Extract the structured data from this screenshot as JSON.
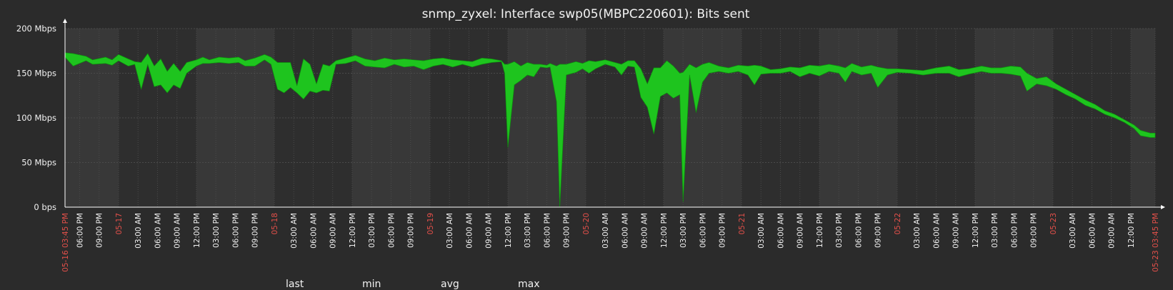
{
  "chart_data": {
    "type": "area",
    "title": "snmp_zyxel: Interface swp05(MBPC220601): Bits sent",
    "y_unit": "Mbps",
    "ylim": [
      0,
      200
    ],
    "y_ticks": [
      {
        "value": 0,
        "label": "0 bps"
      },
      {
        "value": 50,
        "label": "50 Mbps"
      },
      {
        "value": 100,
        "label": "100 Mbps"
      },
      {
        "value": 150,
        "label": "150 Mbps"
      },
      {
        "value": 200,
        "label": "200 Mbps"
      }
    ],
    "x_range": [
      "2024-05-16 15:45",
      "2024-05-23 15:45"
    ],
    "x_tick_labels": [
      {
        "t": "05-16 15:45",
        "label": "05-16 03:45 PM",
        "highlight": true
      },
      {
        "t": "05-16 18:00",
        "label": "06:00 PM"
      },
      {
        "t": "05-16 21:00",
        "label": "09:00 PM"
      },
      {
        "t": "05-17 00:00",
        "label": "05-17",
        "highlight": true
      },
      {
        "t": "05-17 03:00",
        "label": "03:00 AM"
      },
      {
        "t": "05-17 06:00",
        "label": "06:00 AM"
      },
      {
        "t": "05-17 09:00",
        "label": "09:00 AM"
      },
      {
        "t": "05-17 12:00",
        "label": "12:00 PM"
      },
      {
        "t": "05-17 15:00",
        "label": "03:00 PM"
      },
      {
        "t": "05-17 18:00",
        "label": "06:00 PM"
      },
      {
        "t": "05-17 21:00",
        "label": "09:00 PM"
      },
      {
        "t": "05-18 00:00",
        "label": "05-18",
        "highlight": true
      },
      {
        "t": "05-18 03:00",
        "label": "03:00 AM"
      },
      {
        "t": "05-18 06:00",
        "label": "06:00 AM"
      },
      {
        "t": "05-18 09:00",
        "label": "09:00 AM"
      },
      {
        "t": "05-18 12:00",
        "label": "12:00 PM"
      },
      {
        "t": "05-18 15:00",
        "label": "03:00 PM"
      },
      {
        "t": "05-18 18:00",
        "label": "06:00 PM"
      },
      {
        "t": "05-18 21:00",
        "label": "09:00 PM"
      },
      {
        "t": "05-19 00:00",
        "label": "05-19",
        "highlight": true
      },
      {
        "t": "05-19 03:00",
        "label": "03:00 AM"
      },
      {
        "t": "05-19 06:00",
        "label": "06:00 AM"
      },
      {
        "t": "05-19 09:00",
        "label": "09:00 AM"
      },
      {
        "t": "05-19 12:00",
        "label": "12:00 PM"
      },
      {
        "t": "05-19 15:00",
        "label": "03:00 PM"
      },
      {
        "t": "05-19 18:00",
        "label": "06:00 PM"
      },
      {
        "t": "05-19 21:00",
        "label": "09:00 PM"
      },
      {
        "t": "05-20 00:00",
        "label": "05-20",
        "highlight": true
      },
      {
        "t": "05-20 03:00",
        "label": "03:00 AM"
      },
      {
        "t": "05-20 06:00",
        "label": "06:00 AM"
      },
      {
        "t": "05-20 09:00",
        "label": "09:00 AM"
      },
      {
        "t": "05-20 12:00",
        "label": "12:00 PM"
      },
      {
        "t": "05-20 15:00",
        "label": "03:00 PM"
      },
      {
        "t": "05-20 18:00",
        "label": "06:00 PM"
      },
      {
        "t": "05-20 21:00",
        "label": "09:00 PM"
      },
      {
        "t": "05-21 00:00",
        "label": "05-21",
        "highlight": true
      },
      {
        "t": "05-21 03:00",
        "label": "03:00 AM"
      },
      {
        "t": "05-21 06:00",
        "label": "06:00 AM"
      },
      {
        "t": "05-21 09:00",
        "label": "09:00 AM"
      },
      {
        "t": "05-21 12:00",
        "label": "12:00 PM"
      },
      {
        "t": "05-21 15:00",
        "label": "03:00 PM"
      },
      {
        "t": "05-21 18:00",
        "label": "06:00 PM"
      },
      {
        "t": "05-21 21:00",
        "label": "09:00 PM"
      },
      {
        "t": "05-22 00:00",
        "label": "05-22",
        "highlight": true
      },
      {
        "t": "05-22 03:00",
        "label": "03:00 AM"
      },
      {
        "t": "05-22 06:00",
        "label": "06:00 AM"
      },
      {
        "t": "05-22 09:00",
        "label": "09:00 AM"
      },
      {
        "t": "05-22 12:00",
        "label": "12:00 PM"
      },
      {
        "t": "05-22 15:00",
        "label": "03:00 PM"
      },
      {
        "t": "05-22 18:00",
        "label": "06:00 PM"
      },
      {
        "t": "05-22 21:00",
        "label": "09:00 PM"
      },
      {
        "t": "05-23 00:00",
        "label": "05-23",
        "highlight": true
      },
      {
        "t": "05-23 03:00",
        "label": "03:00 AM"
      },
      {
        "t": "05-23 06:00",
        "label": "06:00 AM"
      },
      {
        "t": "05-23 09:00",
        "label": "09:00 AM"
      },
      {
        "t": "05-23 12:00",
        "label": "12:00 PM"
      },
      {
        "t": "05-23 15:45",
        "label": "05-23 03:45 PM",
        "highlight": true
      }
    ],
    "series": [
      {
        "color": "#1ec41e",
        "points": [
          [
            "05-16 15:45",
            168,
            173
          ],
          [
            "05-16 17:00",
            158,
            172
          ],
          [
            "05-16 19:00",
            164,
            169
          ],
          [
            "05-16 20:00",
            160,
            165
          ],
          [
            "05-16 22:00",
            161,
            168
          ],
          [
            "05-16 23:00",
            159,
            165
          ],
          [
            "05-17 00:00",
            164,
            171
          ],
          [
            "05-17 01:30",
            158,
            166
          ],
          [
            "05-17 02:30",
            160,
            163
          ],
          [
            "05-17 03:30",
            132,
            162
          ],
          [
            "05-17 04:30",
            160,
            172
          ],
          [
            "05-17 05:30",
            135,
            158
          ],
          [
            "05-17 06:30",
            137,
            166
          ],
          [
            "05-17 07:30",
            128,
            152
          ],
          [
            "05-17 08:30",
            137,
            161
          ],
          [
            "05-17 09:30",
            133,
            152
          ],
          [
            "05-17 10:30",
            150,
            162
          ],
          [
            "05-17 12:00",
            158,
            165
          ],
          [
            "05-17 13:00",
            161,
            168
          ],
          [
            "05-17 14:00",
            161,
            165
          ],
          [
            "05-17 15:30",
            162,
            168
          ],
          [
            "05-17 17:00",
            161,
            167
          ],
          [
            "05-17 18:30",
            162,
            168
          ],
          [
            "05-17 19:30",
            158,
            164
          ],
          [
            "05-17 21:00",
            158,
            167
          ],
          [
            "05-17 22:30",
            165,
            171
          ],
          [
            "05-17 23:30",
            160,
            168
          ],
          [
            "05-18 00:30",
            132,
            162
          ],
          [
            "05-18 01:30",
            128,
            162
          ],
          [
            "05-18 02:30",
            134,
            162
          ],
          [
            "05-18 03:30",
            128,
            136
          ],
          [
            "05-18 04:30",
            121,
            166
          ],
          [
            "05-18 05:30",
            130,
            160
          ],
          [
            "05-18 06:30",
            128,
            138
          ],
          [
            "05-18 07:30",
            131,
            160
          ],
          [
            "05-18 08:30",
            130,
            158
          ],
          [
            "05-18 09:30",
            160,
            164
          ],
          [
            "05-18 11:00",
            161,
            167
          ],
          [
            "05-18 12:30",
            164,
            170
          ],
          [
            "05-18 14:00",
            158,
            166
          ],
          [
            "05-18 15:30",
            157,
            164
          ],
          [
            "05-18 17:00",
            156,
            167
          ],
          [
            "05-18 18:30",
            160,
            165
          ],
          [
            "05-18 20:00",
            157,
            166
          ],
          [
            "05-18 21:30",
            158,
            165
          ],
          [
            "05-18 23:00",
            154,
            164
          ],
          [
            "05-19 00:30",
            158,
            166
          ],
          [
            "05-19 02:00",
            160,
            167
          ],
          [
            "05-19 03:30",
            157,
            165
          ],
          [
            "05-19 05:00",
            160,
            164
          ],
          [
            "05-19 06:30",
            157,
            163
          ],
          [
            "05-19 08:00",
            160,
            167
          ],
          [
            "05-19 09:30",
            162,
            166
          ],
          [
            "05-19 11:00",
            163,
            164
          ],
          [
            "05-19 11:30",
            150,
            160
          ],
          [
            "05-19 12:00",
            67,
            160
          ],
          [
            "05-19 13:00",
            137,
            163
          ],
          [
            "05-19 14:00",
            142,
            158
          ],
          [
            "05-19 15:00",
            148,
            162
          ],
          [
            "05-19 16:00",
            146,
            160
          ],
          [
            "05-19 17:00",
            157,
            160
          ],
          [
            "05-19 18:00",
            156,
            159
          ],
          [
            "05-19 18:30",
            157,
            161
          ],
          [
            "05-19 19:30",
            118,
            158
          ],
          [
            "05-19 20:00",
            0,
            160
          ],
          [
            "05-19 21:00",
            148,
            160
          ],
          [
            "05-19 22:30",
            151,
            163
          ],
          [
            "05-19 23:30",
            155,
            161
          ],
          [
            "05-20 00:30",
            150,
            164
          ],
          [
            "05-20 01:30",
            155,
            163
          ],
          [
            "05-20 03:00",
            160,
            165
          ],
          [
            "05-20 04:30",
            157,
            162
          ],
          [
            "05-20 05:30",
            148,
            160
          ],
          [
            "05-20 06:30",
            158,
            164
          ],
          [
            "05-20 07:30",
            157,
            164
          ],
          [
            "05-20 08:30",
            123,
            155
          ],
          [
            "05-20 09:30",
            112,
            138
          ],
          [
            "05-20 10:30",
            82,
            156
          ],
          [
            "05-20 11:30",
            124,
            156
          ],
          [
            "05-20 12:30",
            128,
            164
          ],
          [
            "05-20 13:30",
            122,
            158
          ],
          [
            "05-20 14:30",
            126,
            150
          ],
          [
            "05-20 15:00",
            6,
            151
          ],
          [
            "05-20 16:00",
            148,
            160
          ],
          [
            "05-20 17:00",
            106,
            156
          ],
          [
            "05-20 18:00",
            140,
            160
          ],
          [
            "05-20 19:00",
            150,
            162
          ],
          [
            "05-20 20:30",
            152,
            158
          ],
          [
            "05-20 22:00",
            150,
            156
          ],
          [
            "05-20 23:30",
            152,
            159
          ],
          [
            "05-21 01:00",
            148,
            158
          ],
          [
            "05-21 02:00",
            137,
            159
          ],
          [
            "05-21 03:00",
            149,
            158
          ],
          [
            "05-21 04:30",
            150,
            154
          ],
          [
            "05-21 06:00",
            150,
            155
          ],
          [
            "05-21 07:30",
            152,
            157
          ],
          [
            "05-21 09:00",
            146,
            156
          ],
          [
            "05-21 10:30",
            150,
            159
          ],
          [
            "05-21 12:00",
            147,
            158
          ],
          [
            "05-21 13:30",
            152,
            160
          ],
          [
            "05-21 15:00",
            150,
            158
          ],
          [
            "05-21 16:00",
            140,
            156
          ],
          [
            "05-21 17:00",
            152,
            161
          ],
          [
            "05-21 18:30",
            148,
            157
          ],
          [
            "05-21 20:00",
            150,
            159
          ],
          [
            "05-21 21:00",
            134,
            157
          ],
          [
            "05-21 22:30",
            148,
            155
          ],
          [
            "05-22 00:00",
            151,
            155
          ],
          [
            "05-22 02:00",
            150,
            154
          ],
          [
            "05-22 04:00",
            148,
            153
          ],
          [
            "05-22 06:00",
            150,
            156
          ],
          [
            "05-22 08:00",
            150,
            158
          ],
          [
            "05-22 09:30",
            146,
            154
          ],
          [
            "05-22 11:00",
            149,
            155
          ],
          [
            "05-22 13:00",
            152,
            158
          ],
          [
            "05-22 14:30",
            150,
            156
          ],
          [
            "05-22 16:00",
            150,
            156
          ],
          [
            "05-22 17:30",
            149,
            158
          ],
          [
            "05-22 19:00",
            147,
            157
          ],
          [
            "05-22 20:00",
            130,
            150
          ],
          [
            "05-22 21:30",
            138,
            144
          ],
          [
            "05-22 23:00",
            136,
            146
          ],
          [
            "05-23 00:30",
            132,
            138
          ],
          [
            "05-23 02:00",
            126,
            132
          ],
          [
            "05-23 03:30",
            121,
            126
          ],
          [
            "05-23 05:00",
            114,
            120
          ],
          [
            "05-23 06:30",
            110,
            115
          ],
          [
            "05-23 08:00",
            104,
            108
          ],
          [
            "05-23 09:30",
            100,
            104
          ],
          [
            "05-23 11:00",
            95,
            98
          ],
          [
            "05-23 12:30",
            88,
            92
          ],
          [
            "05-23 13:30",
            80,
            86
          ],
          [
            "05-23 15:00",
            78,
            83
          ],
          [
            "05-23 15:45",
            78,
            83
          ]
        ]
      }
    ],
    "legend": {
      "headers": [
        "last",
        "min",
        "avg",
        "max"
      ]
    }
  }
}
